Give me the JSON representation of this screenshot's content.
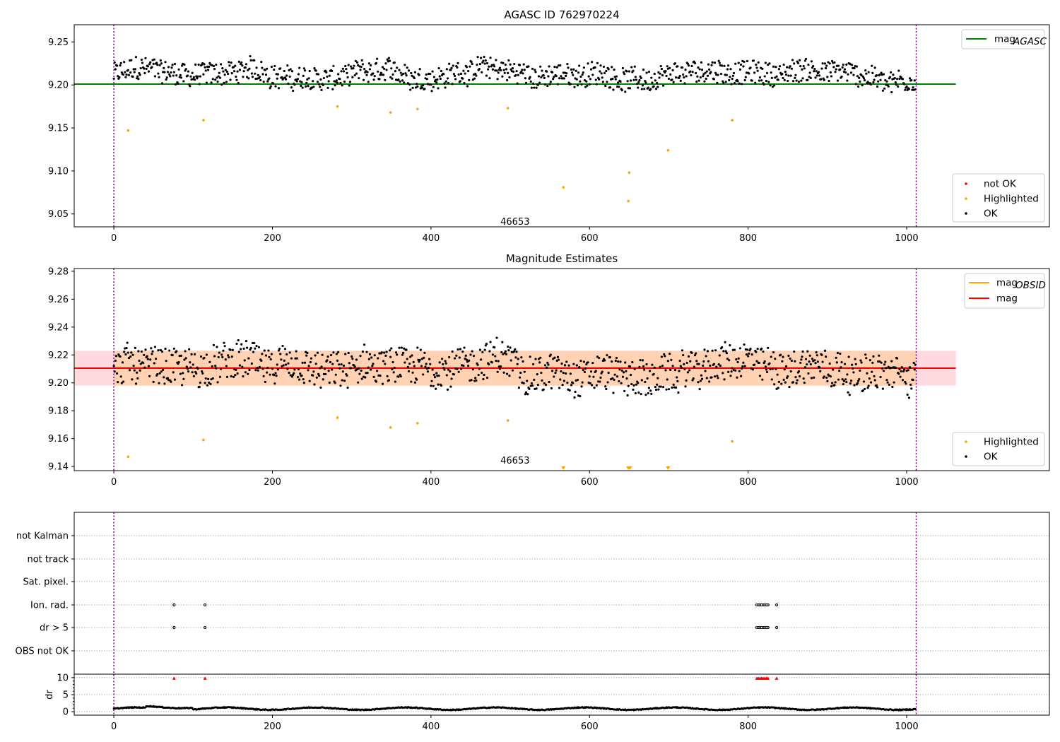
{
  "chart_data": [
    {
      "type": "scatter",
      "title": "AGASC ID 762970224",
      "xlim": [
        -50,
        1180
      ],
      "ylim": [
        9.035,
        9.27
      ],
      "xticks": [
        0,
        200,
        400,
        600,
        800,
        1000
      ],
      "yticks": [
        "9.05",
        "9.10",
        "9.15",
        "9.20",
        "9.25"
      ],
      "obsid_boundaries": [
        0,
        1012
      ],
      "obsid_label": {
        "text": "46653",
        "x": 506,
        "y": 9.04
      },
      "hlines": [
        {
          "name": "mag_AGASC",
          "value": 9.201,
          "x_end": 1062,
          "color": "#008000"
        }
      ],
      "ok_points": {
        "n": 1012,
        "center": 9.212,
        "spread": 0.012
      },
      "highlighted": [
        [
          18,
          9.147
        ],
        [
          113,
          9.159
        ],
        [
          282,
          9.175
        ],
        [
          349,
          9.168
        ],
        [
          383,
          9.172
        ],
        [
          497,
          9.173
        ],
        [
          567,
          9.081
        ],
        [
          650,
          9.098
        ],
        [
          649,
          9.065
        ],
        [
          699,
          9.124
        ],
        [
          780,
          9.159
        ]
      ],
      "legend_top": [
        {
          "label": "mag",
          "sub": "AGASC",
          "color": "#008000"
        }
      ],
      "legend_bottom": [
        {
          "label": "not OK",
          "color": "#ff0000"
        },
        {
          "label": "Highlighted",
          "color": "#ffa500"
        },
        {
          "label": "OK",
          "color": "#000000"
        }
      ]
    },
    {
      "type": "scatter",
      "title": "Magnitude Estimates",
      "xlim": [
        -50,
        1180
      ],
      "ylim": [
        9.137,
        9.282
      ],
      "xticks": [
        0,
        200,
        400,
        600,
        800,
        1000
      ],
      "yticks": [
        "9.14",
        "9.16",
        "9.18",
        "9.20",
        "9.22",
        "9.24",
        "9.26",
        "9.28"
      ],
      "obsid_boundaries": [
        0,
        1012
      ],
      "obsid_label": {
        "text": "46653",
        "x": 506,
        "y": 9.14
      },
      "band_mag": {
        "low": 9.198,
        "high": 9.223,
        "x_end": 1062,
        "color": "#ffdbe1"
      },
      "band_obsid": {
        "low": 9.198,
        "high": 9.223,
        "x_end": 1012,
        "color": "#ffd2b4"
      },
      "hlines": [
        {
          "name": "mag_OBSID",
          "value": 9.211,
          "x_start": 0,
          "x_end": 1012,
          "color": "#ffa500"
        },
        {
          "name": "mag",
          "value": 9.2105,
          "x_start": -50,
          "x_end": 1062,
          "color": "#ff0000"
        }
      ],
      "ok_points": {
        "n": 1012,
        "center": 9.21,
        "spread": 0.012
      },
      "highlighted": [
        [
          18,
          9.147
        ],
        [
          113,
          9.159
        ],
        [
          282,
          9.175
        ],
        [
          349,
          9.168
        ],
        [
          383,
          9.171
        ],
        [
          497,
          9.173
        ],
        [
          780,
          9.158
        ]
      ],
      "below_range_markers": [
        567,
        649,
        651,
        699
      ],
      "legend_top": [
        {
          "label": "mag",
          "sub": "OBSID",
          "color": "#ffa500"
        },
        {
          "label": "mag",
          "sub": "",
          "color": "#ff0000"
        }
      ],
      "legend_bottom": [
        {
          "label": "Highlighted",
          "color": "#ffa500"
        },
        {
          "label": "OK",
          "color": "#000000"
        }
      ]
    },
    {
      "type": "scatter",
      "xlim": [
        -50,
        1180
      ],
      "flag_rows": [
        "not Kalman",
        "not track",
        "Sat. pixel.",
        "Ion. rad.",
        "dr > 5",
        "OBS not OK"
      ],
      "flag_points": {
        "Ion. rad.": [
          76,
          115,
          811,
          813,
          815,
          817,
          819,
          821,
          823,
          825,
          836
        ],
        "dr > 5": [
          76,
          115,
          811,
          813,
          815,
          817,
          819,
          821,
          823,
          825,
          836
        ]
      },
      "dr_panel": {
        "ylabel": "dr",
        "ylim": [
          -1,
          11
        ],
        "yticks": [
          "0",
          "5",
          "10"
        ],
        "xticks": [
          0,
          200,
          400,
          600,
          800,
          1000
        ],
        "clipped_points": [
          76,
          115,
          811,
          813,
          815,
          817,
          819,
          821,
          823,
          825,
          836
        ]
      }
    }
  ]
}
